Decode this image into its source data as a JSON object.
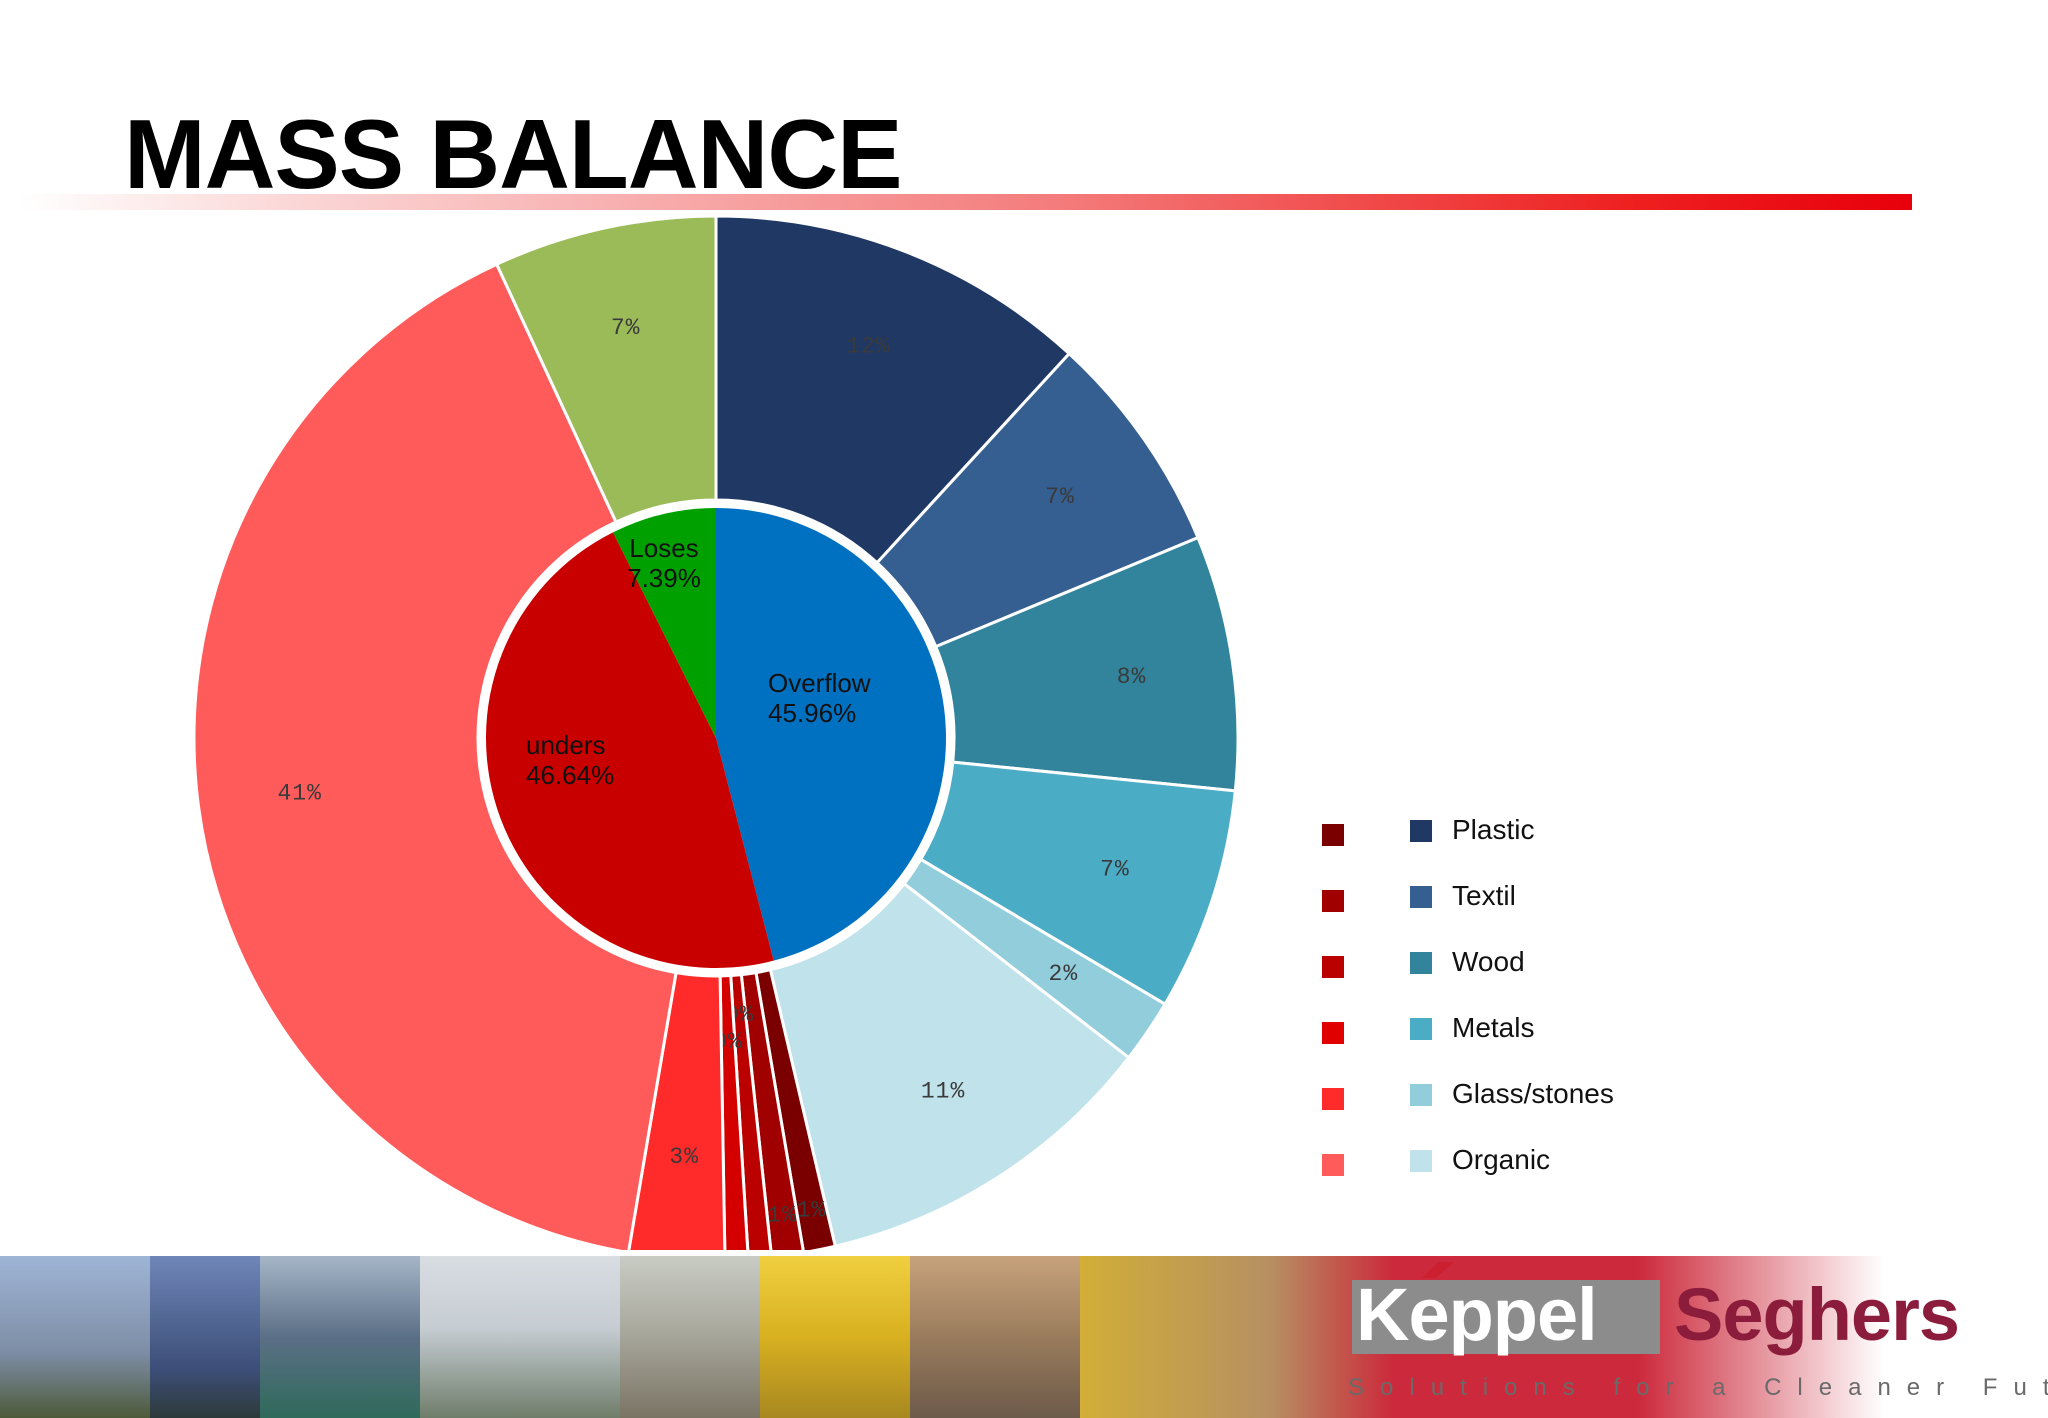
{
  "title": "MASS BALANCE",
  "chart_data": {
    "type": "pie",
    "title": "",
    "inner": {
      "categories": [
        "Overflow",
        "unders",
        "Loses"
      ],
      "values": [
        45.96,
        46.64,
        7.39
      ],
      "labels": [
        [
          "Overflow",
          "45.96%"
        ],
        [
          "unders",
          "46.64%"
        ],
        [
          "Loses",
          "7.39%"
        ]
      ],
      "colors": [
        "#0070c0",
        "#c80000",
        "#00a000"
      ]
    },
    "outer": {
      "categories": [
        "Plastic",
        "Textil",
        "Wood",
        "Metals",
        "Glass/stones",
        "Organic",
        "Plastic",
        "Textil",
        "Wood",
        "Metals",
        "Glass/stones",
        "Organic",
        "Loses"
      ],
      "values": [
        12,
        7,
        8,
        7,
        2,
        11,
        1,
        1,
        0,
        0,
        3,
        41,
        7
      ],
      "labels": [
        "12%",
        "7%",
        "8%",
        "7%",
        "2%",
        "11%",
        "1%",
        "1%",
        "0%",
        "0%",
        "3%",
        "41%",
        "7%"
      ],
      "colors": [
        "#1f3864",
        "#355e91",
        "#31849b",
        "#4bacc6",
        "#92cddc",
        "#c0e2ea",
        "#7a0000",
        "#a00000",
        "#bb0000",
        "#d40000",
        "#ff2a2a",
        "#ff5b5b",
        "#9bbb59"
      ]
    },
    "legend": {
      "position": "bottom-right",
      "under_colors": [
        "#7a0000",
        "#a00000",
        "#bb0000",
        "#e00000",
        "#ff2a2a",
        "#ff5b5b"
      ],
      "over_colors": [
        "#1f3864",
        "#355e91",
        "#31849b",
        "#4bacc6",
        "#92cddc",
        "#c0e2ea"
      ],
      "labels": [
        "Plastic",
        "Textil",
        "Wood",
        "Metals",
        "Glass/stones",
        "Organic"
      ]
    }
  },
  "footer": {
    "logo_left": "Keppel",
    "logo_right": "Seghers",
    "tagline": "Solutions for a Cleaner Future"
  }
}
